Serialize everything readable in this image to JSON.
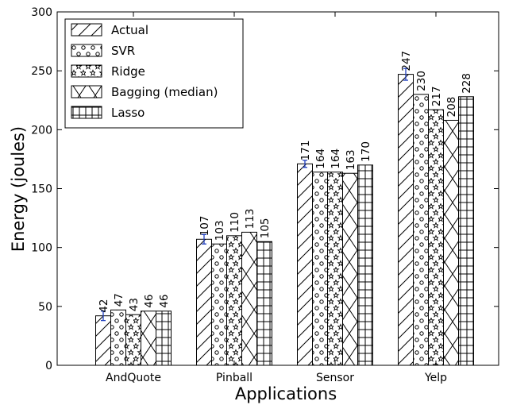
{
  "chart_data": {
    "type": "bar",
    "title": "",
    "xlabel": "Applications",
    "ylabel": "Energy (joules)",
    "ylim": [
      0,
      300
    ],
    "yticks": [
      0,
      50,
      100,
      150,
      200,
      250,
      300
    ],
    "grid": false,
    "legend_position": "top-left",
    "categories": [
      "AndQuote",
      "Pinball",
      "Sensor",
      "Yelp"
    ],
    "series": [
      {
        "name": "Actual",
        "pattern": "diagonal-hatch",
        "values": [
          42,
          107,
          171,
          247
        ],
        "error": [
          4,
          4,
          3,
          5
        ]
      },
      {
        "name": "SVR",
        "pattern": "circles",
        "values": [
          47,
          103,
          164,
          230
        ]
      },
      {
        "name": "Ridge",
        "pattern": "stars",
        "values": [
          43,
          110,
          164,
          217
        ]
      },
      {
        "name": "Bagging (median)",
        "pattern": "x-hatch",
        "values": [
          46,
          113,
          163,
          208
        ]
      },
      {
        "name": "Lasso",
        "pattern": "grid-hatch",
        "values": [
          46,
          105,
          170,
          228
        ]
      }
    ],
    "colors": {
      "bar_fill": "#ffffff",
      "bar_stroke": "#000000",
      "error_bar": "#1f3fbf"
    }
  }
}
